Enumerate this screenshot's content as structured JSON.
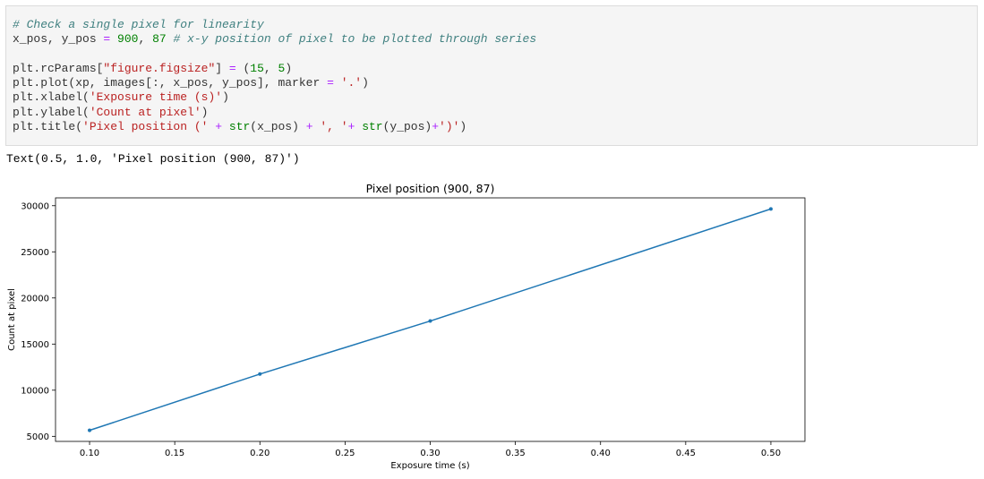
{
  "code_cell": {
    "lines": [
      [
        {
          "t": "# Check a single pixel for linearity",
          "c": "c-comment"
        }
      ],
      [
        {
          "t": "x_pos, y_pos ",
          "c": ""
        },
        {
          "t": "=",
          "c": "c-op"
        },
        {
          "t": " ",
          "c": ""
        },
        {
          "t": "900",
          "c": "c-num"
        },
        {
          "t": ", ",
          "c": ""
        },
        {
          "t": "87",
          "c": "c-num"
        },
        {
          "t": " ",
          "c": ""
        },
        {
          "t": "# x-y position of pixel to be plotted through series",
          "c": "c-comment"
        }
      ],
      [
        {
          "t": "",
          "c": ""
        }
      ],
      [
        {
          "t": "plt.rcParams[",
          "c": ""
        },
        {
          "t": "\"figure.figsize\"",
          "c": "c-str"
        },
        {
          "t": "] ",
          "c": ""
        },
        {
          "t": "=",
          "c": "c-op"
        },
        {
          "t": " (",
          "c": ""
        },
        {
          "t": "15",
          "c": "c-num"
        },
        {
          "t": ", ",
          "c": ""
        },
        {
          "t": "5",
          "c": "c-num"
        },
        {
          "t": ")",
          "c": ""
        }
      ],
      [
        {
          "t": "plt.plot(xp, images[:, x_pos, y_pos], marker ",
          "c": ""
        },
        {
          "t": "=",
          "c": "c-op"
        },
        {
          "t": " ",
          "c": ""
        },
        {
          "t": "'.'",
          "c": "c-str"
        },
        {
          "t": ")",
          "c": ""
        }
      ],
      [
        {
          "t": "plt.xlabel(",
          "c": ""
        },
        {
          "t": "'Exposure time (s)'",
          "c": "c-str"
        },
        {
          "t": ")",
          "c": ""
        }
      ],
      [
        {
          "t": "plt.ylabel(",
          "c": ""
        },
        {
          "t": "'Count at pixel'",
          "c": "c-str"
        },
        {
          "t": ")",
          "c": ""
        }
      ],
      [
        {
          "t": "plt.title(",
          "c": ""
        },
        {
          "t": "'Pixel position ('",
          "c": "c-str"
        },
        {
          "t": " ",
          "c": ""
        },
        {
          "t": "+",
          "c": "c-op"
        },
        {
          "t": " ",
          "c": ""
        },
        {
          "t": "str",
          "c": "c-fn"
        },
        {
          "t": "(x_pos) ",
          "c": ""
        },
        {
          "t": "+",
          "c": "c-op"
        },
        {
          "t": " ",
          "c": ""
        },
        {
          "t": "', '",
          "c": "c-str"
        },
        {
          "t": "+",
          "c": "c-op"
        },
        {
          "t": " ",
          "c": ""
        },
        {
          "t": "str",
          "c": "c-fn"
        },
        {
          "t": "(y_pos)",
          "c": ""
        },
        {
          "t": "+",
          "c": "c-op"
        },
        {
          "t": "')'",
          "c": "c-str"
        },
        {
          "t": ")",
          "c": ""
        }
      ]
    ]
  },
  "output": {
    "text": "Text(0.5, 1.0, 'Pixel position (900, 87)')"
  },
  "chart_data": {
    "type": "line",
    "title": "Pixel position (900, 87)",
    "xlabel": "Exposure time (s)",
    "ylabel": "Count at pixel",
    "x": [
      0.1,
      0.2,
      0.3,
      0.5
    ],
    "series": [
      {
        "values": [
          5650,
          11750,
          17500,
          29650
        ],
        "color": "#1f77b4",
        "marker": "point"
      }
    ],
    "xticks": [
      0.1,
      0.15,
      0.2,
      0.25,
      0.3,
      0.35,
      0.4,
      0.45,
      0.5
    ],
    "xtick_labels": [
      "0.10",
      "0.15",
      "0.20",
      "0.25",
      "0.30",
      "0.35",
      "0.40",
      "0.45",
      "0.50"
    ],
    "yticks": [
      5000,
      10000,
      15000,
      20000,
      25000,
      30000
    ],
    "ytick_labels": [
      "5000",
      "10000",
      "15000",
      "20000",
      "25000",
      "30000"
    ],
    "xlim": [
      0.08,
      0.52
    ],
    "ylim": [
      4450,
      30850
    ],
    "grid": false,
    "legend": "none"
  }
}
